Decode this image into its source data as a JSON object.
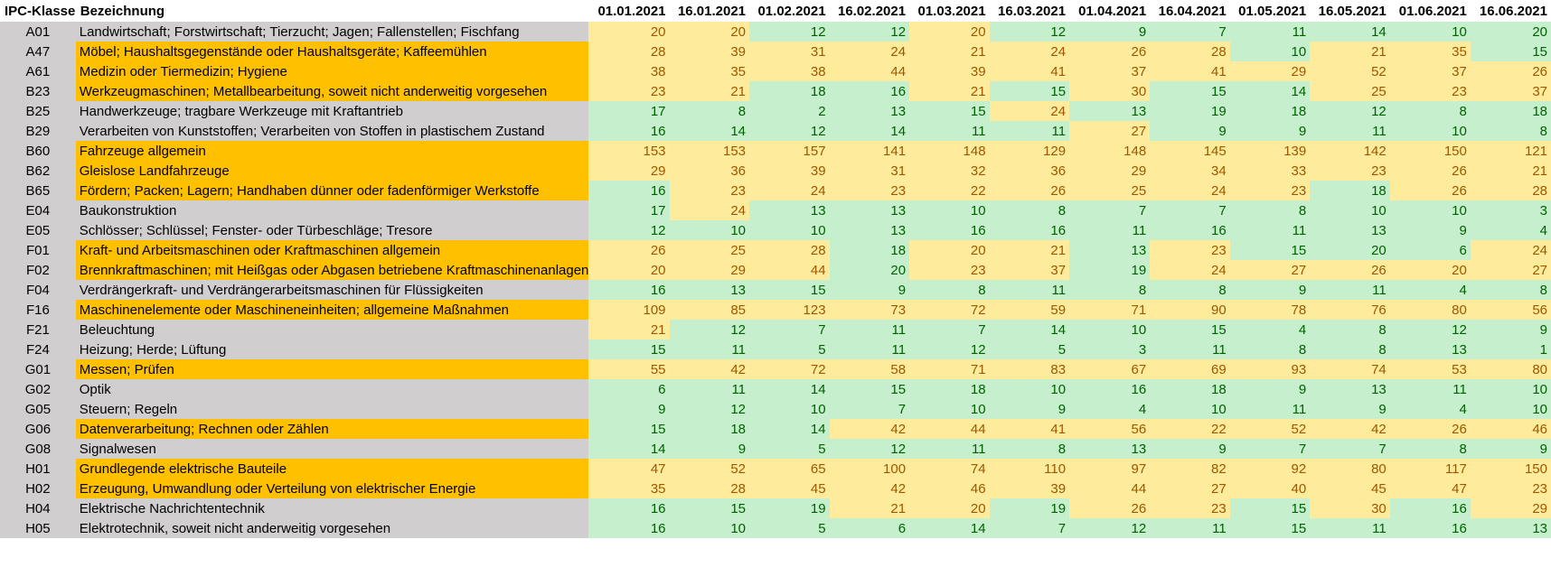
{
  "colors": {
    "code_bg": "#d0cece",
    "name_bg": "#d0cece",
    "name_highlight": "#ffc000",
    "cell_low_bg": "#c6efce",
    "cell_low_text": "#006100",
    "cell_high_bg": "#ffeb9c",
    "cell_high_text": "#9c5700"
  },
  "table": {
    "headers": {
      "code": "IPC-Klasse",
      "name": "Bezeichnung",
      "dates": [
        "01.01.2021",
        "16.01.2021",
        "01.02.2021",
        "16.02.2021",
        "01.03.2021",
        "16.03.2021",
        "01.04.2021",
        "16.04.2021",
        "01.05.2021",
        "16.05.2021",
        "01.06.2021",
        "16.06.2021"
      ]
    },
    "rows": [
      {
        "code": "A01",
        "name": "Landwirtschaft; Forstwirtschaft; Tierzucht; Jagen; Fallenstellen; Fischfang",
        "hl": false,
        "values": [
          20,
          20,
          12,
          12,
          20,
          12,
          9,
          7,
          11,
          14,
          10,
          20
        ],
        "status": [
          "y",
          "y",
          "g",
          "g",
          "y",
          "g",
          "g",
          "g",
          "g",
          "g",
          "g",
          "g"
        ]
      },
      {
        "code": "A47",
        "name": "Möbel; Haushaltsgegenstände oder Haushaltsgeräte; Kaffeemühlen",
        "hl": true,
        "values": [
          28,
          39,
          31,
          24,
          21,
          24,
          26,
          28,
          10,
          21,
          35,
          15
        ],
        "status": [
          "y",
          "y",
          "y",
          "y",
          "y",
          "y",
          "y",
          "y",
          "g",
          "y",
          "y",
          "g"
        ]
      },
      {
        "code": "A61",
        "name": "Medizin oder Tiermedizin; Hygiene",
        "hl": true,
        "values": [
          38,
          35,
          38,
          44,
          39,
          41,
          37,
          41,
          29,
          52,
          37,
          26
        ],
        "status": [
          "y",
          "y",
          "y",
          "y",
          "y",
          "y",
          "y",
          "y",
          "y",
          "y",
          "y",
          "y"
        ]
      },
      {
        "code": "B23",
        "name": "Werkzeugmaschinen; Metallbearbeitung, soweit nicht anderweitig vorgesehen",
        "hl": true,
        "values": [
          23,
          21,
          18,
          16,
          21,
          15,
          30,
          15,
          14,
          25,
          23,
          37
        ],
        "status": [
          "y",
          "y",
          "g",
          "g",
          "y",
          "g",
          "y",
          "g",
          "g",
          "y",
          "y",
          "y"
        ]
      },
      {
        "code": "B25",
        "name": "Handwerkzeuge; tragbare Werkzeuge mit Kraftantrieb",
        "hl": false,
        "values": [
          17,
          8,
          2,
          13,
          15,
          24,
          13,
          19,
          18,
          12,
          8,
          18
        ],
        "status": [
          "g",
          "g",
          "g",
          "g",
          "g",
          "y",
          "g",
          "g",
          "g",
          "g",
          "g",
          "g"
        ]
      },
      {
        "code": "B29",
        "name": "Verarbeiten von Kunststoffen; Verarbeiten von Stoffen in plastischem Zustand",
        "hl": false,
        "values": [
          16,
          14,
          12,
          14,
          11,
          11,
          27,
          9,
          9,
          11,
          10,
          8
        ],
        "status": [
          "g",
          "g",
          "g",
          "g",
          "g",
          "g",
          "y",
          "g",
          "g",
          "g",
          "g",
          "g"
        ]
      },
      {
        "code": "B60",
        "name": "Fahrzeuge allgemein",
        "hl": true,
        "values": [
          153,
          153,
          157,
          141,
          148,
          129,
          148,
          145,
          139,
          142,
          150,
          121
        ],
        "status": [
          "y",
          "y",
          "y",
          "y",
          "y",
          "y",
          "y",
          "y",
          "y",
          "y",
          "y",
          "y"
        ]
      },
      {
        "code": "B62",
        "name": "Gleislose Landfahrzeuge",
        "hl": true,
        "values": [
          29,
          36,
          39,
          31,
          32,
          36,
          29,
          34,
          33,
          23,
          26,
          21
        ],
        "status": [
          "y",
          "y",
          "y",
          "y",
          "y",
          "y",
          "y",
          "y",
          "y",
          "y",
          "y",
          "y"
        ]
      },
      {
        "code": "B65",
        "name": "Fördern; Packen; Lagern; Handhaben dünner oder fadenförmiger Werkstoffe",
        "hl": true,
        "values": [
          16,
          23,
          24,
          23,
          22,
          26,
          25,
          24,
          23,
          18,
          26,
          28
        ],
        "status": [
          "g",
          "y",
          "y",
          "y",
          "y",
          "y",
          "y",
          "y",
          "y",
          "g",
          "y",
          "y"
        ]
      },
      {
        "code": "E04",
        "name": "Baukonstruktion",
        "hl": false,
        "values": [
          17,
          24,
          13,
          13,
          10,
          8,
          7,
          7,
          8,
          10,
          10,
          3
        ],
        "status": [
          "g",
          "y",
          "g",
          "g",
          "g",
          "g",
          "g",
          "g",
          "g",
          "g",
          "g",
          "g"
        ]
      },
      {
        "code": "E05",
        "name": "Schlösser; Schlüssel; Fenster- oder Türbeschläge; Tresore",
        "hl": false,
        "values": [
          12,
          10,
          10,
          13,
          16,
          16,
          11,
          16,
          11,
          13,
          9,
          4
        ],
        "status": [
          "g",
          "g",
          "g",
          "g",
          "g",
          "g",
          "g",
          "g",
          "g",
          "g",
          "g",
          "g"
        ]
      },
      {
        "code": "F01",
        "name": "Kraft- und Arbeitsmaschinen oder Kraftmaschinen allgemein",
        "hl": true,
        "values": [
          26,
          25,
          28,
          18,
          20,
          21,
          13,
          23,
          15,
          20,
          6,
          24
        ],
        "status": [
          "y",
          "y",
          "y",
          "g",
          "y",
          "y",
          "g",
          "y",
          "g",
          "g",
          "g",
          "y"
        ]
      },
      {
        "code": "F02",
        "name": "Brennkraftmaschinen; mit Heißgas oder Abgasen betriebene Kraftmaschinenanlagen",
        "hl": true,
        "values": [
          20,
          29,
          44,
          20,
          23,
          37,
          19,
          24,
          27,
          26,
          20,
          27
        ],
        "status": [
          "y",
          "y",
          "y",
          "g",
          "y",
          "y",
          "g",
          "y",
          "y",
          "y",
          "y",
          "y"
        ]
      },
      {
        "code": "F04",
        "name": "Verdrängerkraft- und Verdrängerarbeitsmaschinen für Flüssigkeiten",
        "hl": false,
        "values": [
          16,
          13,
          15,
          9,
          8,
          11,
          8,
          8,
          9,
          11,
          4,
          8
        ],
        "status": [
          "g",
          "g",
          "g",
          "g",
          "g",
          "g",
          "g",
          "g",
          "g",
          "g",
          "g",
          "g"
        ]
      },
      {
        "code": "F16",
        "name": "Maschinenelemente oder Maschineneinheiten; allgemeine Maßnahmen",
        "hl": true,
        "values": [
          109,
          85,
          123,
          73,
          72,
          59,
          71,
          90,
          78,
          76,
          80,
          56
        ],
        "status": [
          "y",
          "y",
          "y",
          "y",
          "y",
          "y",
          "y",
          "y",
          "y",
          "y",
          "y",
          "y"
        ]
      },
      {
        "code": "F21",
        "name": "Beleuchtung",
        "hl": false,
        "values": [
          21,
          12,
          7,
          11,
          7,
          14,
          10,
          15,
          4,
          8,
          12,
          9
        ],
        "status": [
          "y",
          "g",
          "g",
          "g",
          "g",
          "g",
          "g",
          "g",
          "g",
          "g",
          "g",
          "g"
        ]
      },
      {
        "code": "F24",
        "name": "Heizung; Herde; Lüftung",
        "hl": false,
        "values": [
          15,
          11,
          5,
          11,
          12,
          5,
          3,
          11,
          8,
          8,
          13,
          1
        ],
        "status": [
          "g",
          "g",
          "g",
          "g",
          "g",
          "g",
          "g",
          "g",
          "g",
          "g",
          "g",
          "g"
        ]
      },
      {
        "code": "G01",
        "name": "Messen; Prüfen",
        "hl": true,
        "values": [
          55,
          42,
          72,
          58,
          71,
          83,
          67,
          69,
          93,
          74,
          53,
          80
        ],
        "status": [
          "y",
          "y",
          "y",
          "y",
          "y",
          "y",
          "y",
          "y",
          "y",
          "y",
          "y",
          "y"
        ]
      },
      {
        "code": "G02",
        "name": "Optik",
        "hl": false,
        "values": [
          6,
          11,
          14,
          15,
          18,
          10,
          16,
          18,
          9,
          13,
          11,
          10
        ],
        "status": [
          "g",
          "g",
          "g",
          "g",
          "g",
          "g",
          "g",
          "g",
          "g",
          "g",
          "g",
          "g"
        ]
      },
      {
        "code": "G05",
        "name": "Steuern; Regeln",
        "hl": false,
        "values": [
          9,
          12,
          10,
          7,
          10,
          9,
          4,
          10,
          11,
          9,
          4,
          10
        ],
        "status": [
          "g",
          "g",
          "g",
          "g",
          "g",
          "g",
          "g",
          "g",
          "g",
          "g",
          "g",
          "g"
        ]
      },
      {
        "code": "G06",
        "name": "Datenverarbeitung; Rechnen oder Zählen",
        "hl": true,
        "values": [
          15,
          18,
          14,
          42,
          44,
          41,
          56,
          22,
          52,
          42,
          26,
          46
        ],
        "status": [
          "g",
          "g",
          "g",
          "y",
          "y",
          "y",
          "y",
          "y",
          "y",
          "y",
          "y",
          "y"
        ]
      },
      {
        "code": "G08",
        "name": "Signalwesen",
        "hl": false,
        "values": [
          14,
          9,
          5,
          12,
          11,
          8,
          13,
          9,
          7,
          7,
          8,
          9
        ],
        "status": [
          "g",
          "g",
          "g",
          "g",
          "g",
          "g",
          "g",
          "g",
          "g",
          "g",
          "g",
          "g"
        ]
      },
      {
        "code": "H01",
        "name": "Grundlegende elektrische Bauteile",
        "hl": true,
        "values": [
          47,
          52,
          65,
          100,
          74,
          110,
          97,
          82,
          92,
          80,
          117,
          150
        ],
        "status": [
          "y",
          "y",
          "y",
          "y",
          "y",
          "y",
          "y",
          "y",
          "y",
          "y",
          "y",
          "y"
        ]
      },
      {
        "code": "H02",
        "name": "Erzeugung, Umwandlung oder Verteilung von elektrischer Energie",
        "hl": true,
        "values": [
          35,
          28,
          45,
          42,
          46,
          39,
          44,
          27,
          40,
          45,
          47,
          23
        ],
        "status": [
          "y",
          "y",
          "y",
          "y",
          "y",
          "y",
          "y",
          "y",
          "y",
          "y",
          "y",
          "y"
        ]
      },
      {
        "code": "H04",
        "name": "Elektrische Nachrichtentechnik",
        "hl": false,
        "values": [
          16,
          15,
          19,
          21,
          20,
          19,
          26,
          23,
          15,
          30,
          16,
          29
        ],
        "status": [
          "g",
          "g",
          "g",
          "y",
          "y",
          "g",
          "y",
          "y",
          "g",
          "y",
          "g",
          "y"
        ]
      },
      {
        "code": "H05",
        "name": "Elektrotechnik, soweit nicht anderweitig vorgesehen",
        "hl": false,
        "values": [
          16,
          10,
          5,
          6,
          14,
          7,
          12,
          11,
          15,
          11,
          16,
          13
        ],
        "status": [
          "g",
          "g",
          "g",
          "g",
          "g",
          "g",
          "g",
          "g",
          "g",
          "g",
          "g",
          "g"
        ]
      }
    ]
  }
}
